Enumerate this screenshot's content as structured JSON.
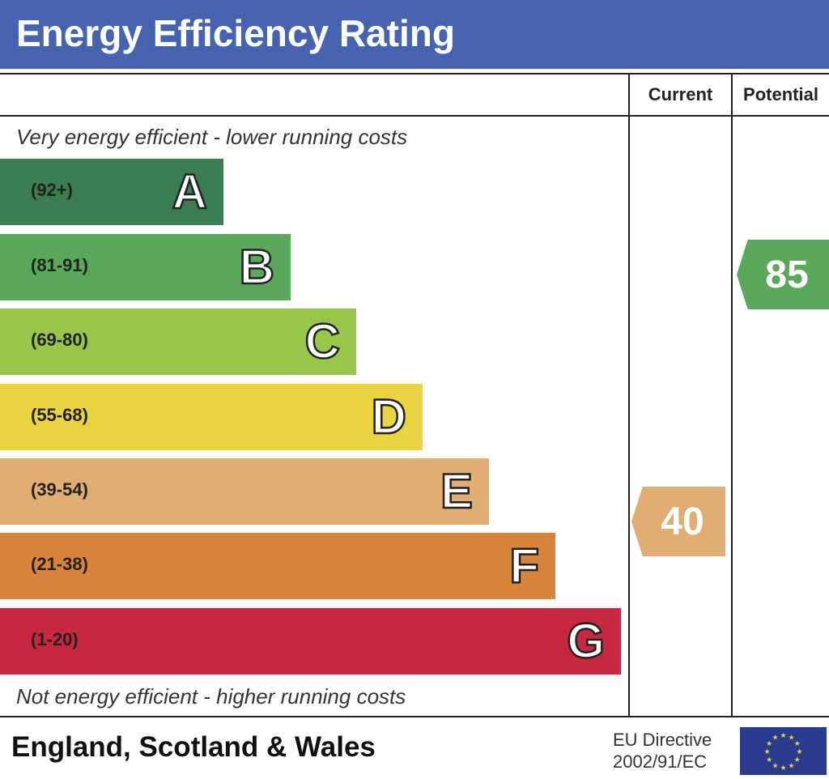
{
  "title": "Energy Efficiency Rating",
  "columns": {
    "current": "Current",
    "potential": "Potential"
  },
  "top_note": "Very energy efficient - lower running costs",
  "bottom_note": "Not energy efficient - higher running costs",
  "footer": {
    "region": "England, Scotland & Wales",
    "directive_line1": "EU Directive",
    "directive_line2": "2002/91/EC",
    "flag_icon": "eu-flag-icon"
  },
  "chart_data": {
    "type": "bar",
    "bands": [
      {
        "letter": "A",
        "range": "(92+)",
        "color": "#3a7d50"
      },
      {
        "letter": "B",
        "range": "(81-91)",
        "color": "#5aa85a"
      },
      {
        "letter": "C",
        "range": "(69-80)",
        "color": "#98c54a"
      },
      {
        "letter": "D",
        "range": "(55-68)",
        "color": "#e8d440"
      },
      {
        "letter": "E",
        "range": "(39-54)",
        "color": "#e0ad72"
      },
      {
        "letter": "F",
        "range": "(21-38)",
        "color": "#d8843a"
      },
      {
        "letter": "G",
        "range": "(1-20)",
        "color": "#c8283f"
      }
    ],
    "current": {
      "value": "40",
      "band": "E",
      "color": "#e0ad72"
    },
    "potential": {
      "value": "85",
      "band": "B",
      "color": "#5aa85a"
    }
  }
}
